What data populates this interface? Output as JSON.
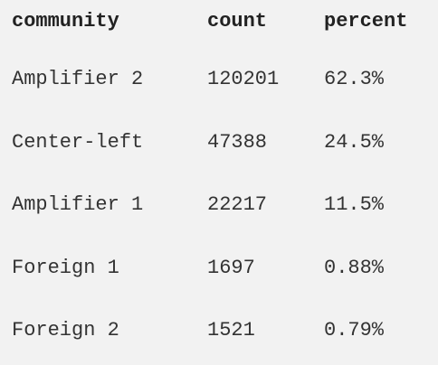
{
  "table": {
    "headers": {
      "community": "community",
      "count": "count",
      "percent": "percent"
    },
    "rows": [
      {
        "community": "Amplifier 2",
        "count": "120201",
        "percent": "62.3%"
      },
      {
        "community": "Center-left",
        "count": "47388",
        "percent": "24.5%"
      },
      {
        "community": "Amplifier 1",
        "count": "22217",
        "percent": "11.5%"
      },
      {
        "community": "Foreign 1",
        "count": "1697",
        "percent": "0.88%"
      },
      {
        "community": "Foreign 2",
        "count": "1521",
        "percent": "0.79%"
      }
    ]
  }
}
